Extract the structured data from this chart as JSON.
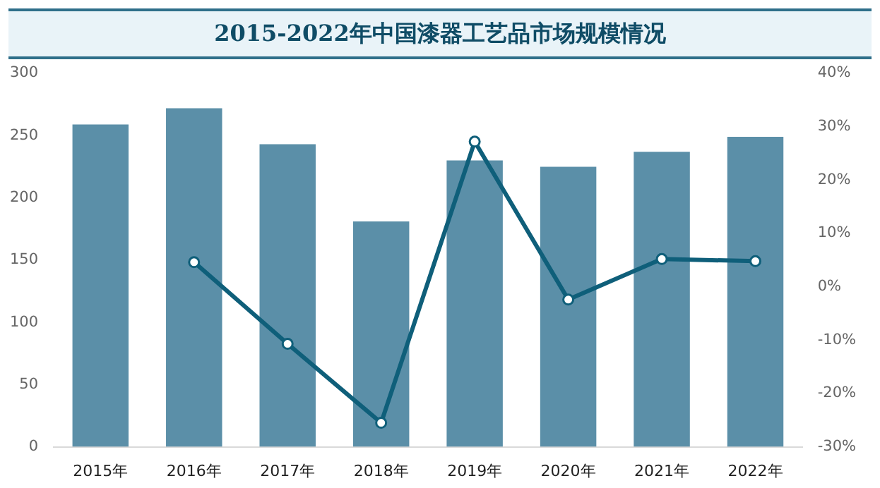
{
  "chart_data": {
    "type": "bar",
    "title": "2015-2022年中国漆器工艺品市场规模情况",
    "categories": [
      "2015年",
      "2016年",
      "2017年",
      "2018年",
      "2019年",
      "2020年",
      "2021年",
      "2022年"
    ],
    "series": [
      {
        "color": "#5b8fa8",
        "values": [
          259,
          272,
          243,
          181,
          230,
          225,
          237,
          249
        ]
      },
      {
        "type": "line",
        "axis": "y2",
        "color": "#0f5f7a",
        "marker": "circle",
        "values": [
          null,
          4.6,
          -10.7,
          -25.5,
          27.2,
          -2.4,
          5.2,
          4.8
        ]
      }
    ],
    "ylim": [
      0,
      300
    ],
    "yticks": [
      0,
      50,
      100,
      150,
      200,
      250,
      300
    ],
    "y2lim": [
      -30,
      40
    ],
    "y2ticks": [
      {
        "value": -30,
        "label": "-30%"
      },
      {
        "value": -20,
        "label": "-20%"
      },
      {
        "value": -10,
        "label": "-10%"
      },
      {
        "value": 0,
        "label": "0%"
      },
      {
        "value": 10,
        "label": "10%"
      },
      {
        "value": 20,
        "label": "20%"
      },
      {
        "value": 30,
        "label": "30%"
      },
      {
        "value": 40,
        "label": "40%"
      }
    ],
    "grid": false,
    "legend": false
  }
}
